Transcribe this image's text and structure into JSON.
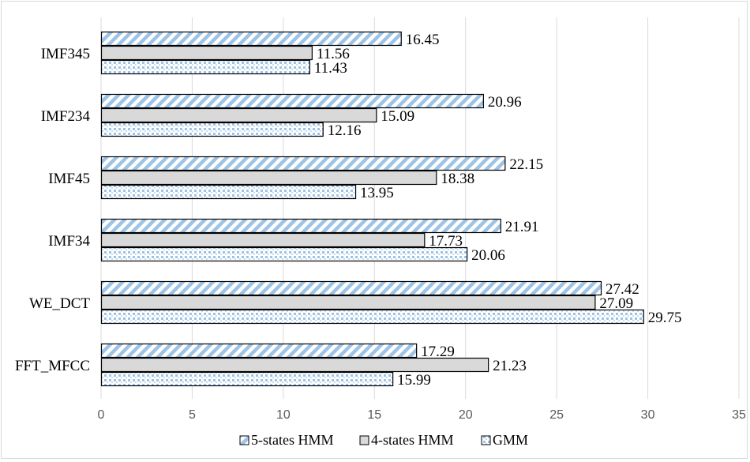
{
  "chart_data": {
    "type": "bar",
    "orientation": "horizontal",
    "categories": [
      "IMF345",
      "IMF234",
      "IMF45",
      "IMF34",
      "WE_DCT",
      "FFT_MFCC"
    ],
    "series": [
      {
        "name": "5-states HMM",
        "values": [
          16.45,
          20.96,
          22.15,
          21.91,
          27.42,
          17.29
        ],
        "value_labels": [
          "16.45",
          "20.96",
          "22.15",
          "21.91",
          "27.42",
          "17.29"
        ],
        "color": "#9dc3e6",
        "pattern": "diagonal-stripes"
      },
      {
        "name": "4-states HMM",
        "values": [
          11.56,
          15.09,
          18.38,
          17.73,
          27.09,
          21.23
        ],
        "value_labels": [
          "11.56",
          "15.09",
          "18.38",
          "17.73",
          "27.09",
          "21.23"
        ],
        "color": "#d9d9d9",
        "pattern": "solid"
      },
      {
        "name": "GMM",
        "values": [
          11.43,
          12.16,
          13.95,
          20.06,
          29.75,
          15.99
        ],
        "value_labels": [
          "11.43",
          "12.16",
          "13.95",
          "20.06",
          "29.75",
          "15.99"
        ],
        "color": "#9dc3e6",
        "pattern": "dots"
      }
    ],
    "xlim": [
      0,
      35
    ],
    "ticks": [
      "0",
      "5",
      "10",
      "15",
      "20",
      "25",
      "30",
      "35"
    ],
    "grid": true,
    "legend_position": "bottom",
    "title": "",
    "xlabel": "",
    "ylabel": ""
  },
  "colors": {
    "bar_outline": "#000000",
    "grid": "#d9d9d9",
    "stripe": "#9dc3e6",
    "dot": "#9dc3e6"
  }
}
